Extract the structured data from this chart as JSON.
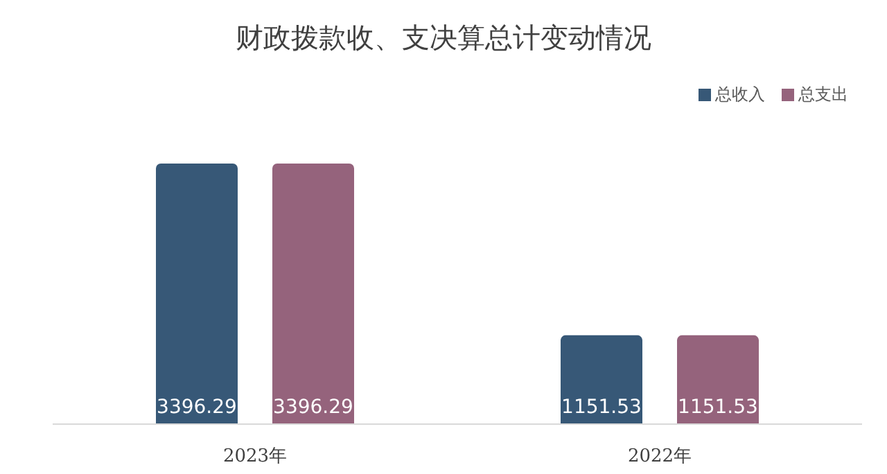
{
  "chart_data": {
    "type": "bar",
    "title": "财政拨款收、支决算总计变动情况",
    "categories": [
      "2023年",
      "2022年"
    ],
    "series": [
      {
        "name": "总收入",
        "color": "#375877",
        "values": [
          3396.29,
          1151.53
        ]
      },
      {
        "name": "总支出",
        "color": "#95637c",
        "values": [
          3396.29,
          1151.53
        ]
      }
    ],
    "data_labels": true,
    "legend": "top right",
    "grid": false
  }
}
